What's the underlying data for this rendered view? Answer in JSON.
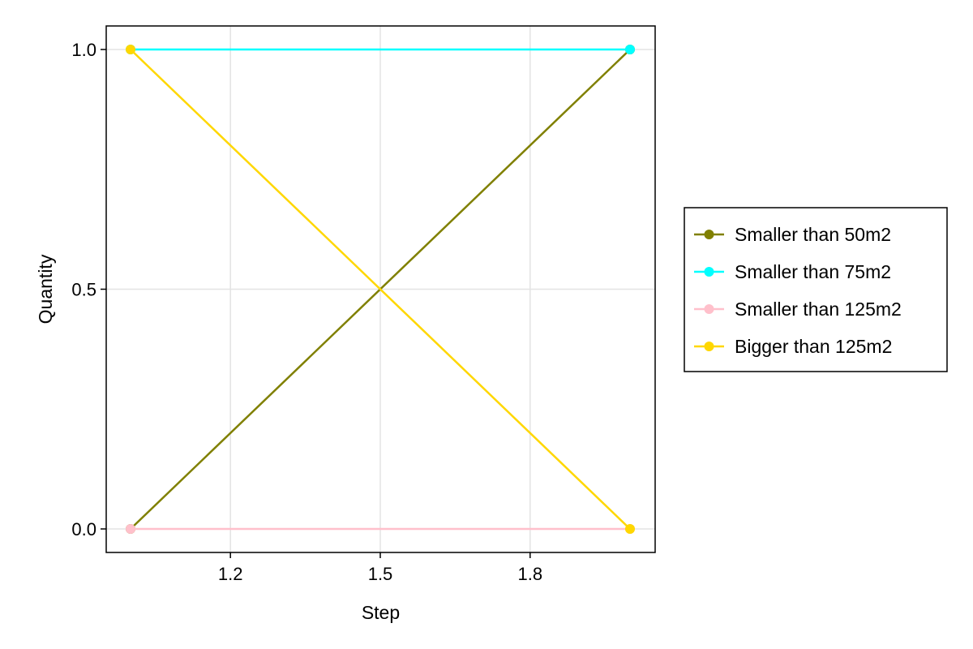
{
  "chart_data": {
    "type": "line",
    "xlabel": "Step",
    "ylabel": "Quantity",
    "xlim": [
      1.0,
      2.0
    ],
    "ylim": [
      0.0,
      1.0
    ],
    "xticks": [
      1.2,
      1.5,
      1.8
    ],
    "xtick_labels": [
      "1.2",
      "1.5",
      "1.8"
    ],
    "yticks": [
      0.0,
      0.5,
      1.0
    ],
    "ytick_labels": [
      "0.0",
      "0.5",
      "1.0"
    ],
    "grid": true,
    "legend_position": "right",
    "series": [
      {
        "name": "Smaller than 50m2",
        "color": "#808000",
        "x": [
          1,
          2
        ],
        "y": [
          0,
          1
        ]
      },
      {
        "name": "Smaller than 75m2",
        "color": "#00ffff",
        "x": [
          1,
          2
        ],
        "y": [
          1,
          1
        ]
      },
      {
        "name": "Smaller than 125m2",
        "color": "#ffc0cb",
        "x": [
          1,
          2
        ],
        "y": [
          0,
          0
        ]
      },
      {
        "name": "Bigger than 125m2",
        "color": "#ffd700",
        "x": [
          1,
          2
        ],
        "y": [
          1,
          0
        ]
      }
    ]
  }
}
